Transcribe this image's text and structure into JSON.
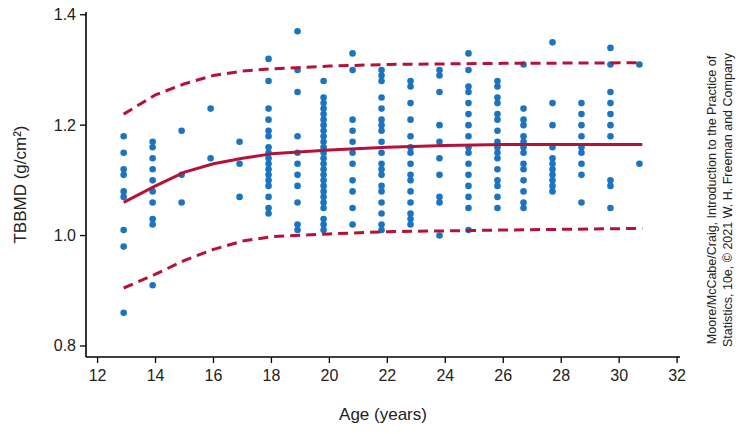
{
  "chart_data": {
    "type": "scatter",
    "x_label": "Age (years)",
    "y_label": "TBBMD (g/cm²)",
    "annotations": [
      "Moore/McCabe/Craig, Introduction to the Practice of",
      "Statistics, 10e, © 2021 W. H. Freeman and Company"
    ],
    "xlim": [
      11.6,
      32.1
    ],
    "ylim": [
      0.78,
      1.405
    ],
    "xticks": [
      12,
      14,
      16,
      18,
      20,
      22,
      24,
      26,
      28,
      30,
      32
    ],
    "yticks": [
      0.8,
      {
        "value": 1,
        "label": "1.0"
      },
      1.2,
      1.4
    ],
    "grid": false,
    "series": [
      {
        "type": "scatter",
        "marker": "circle",
        "color": "#1b74c2",
        "x": [
          12.9,
          12.9,
          12.9,
          12.9,
          12.9,
          12.9,
          12.9,
          12.9,
          12.9,
          13.9,
          13.9,
          13.9,
          13.9,
          13.9,
          13.9,
          13.9,
          13.9,
          13.9,
          13.9,
          14.9,
          14.9,
          14.9,
          15.9,
          15.9,
          16.9,
          16.9,
          16.9,
          17.9,
          17.9,
          17.9,
          17.9,
          17.9,
          17.9,
          17.9,
          17.9,
          17.9,
          17.9,
          17.9,
          17.9,
          17.9,
          17.9,
          17.9,
          17.9,
          17.9,
          18.9,
          18.9,
          18.9,
          18.9,
          18.9,
          18.9,
          18.9,
          18.9,
          18.9,
          18.9,
          18.9,
          19.8,
          19.8,
          19.8,
          19.8,
          19.8,
          19.8,
          19.8,
          19.8,
          19.8,
          19.8,
          19.8,
          19.8,
          19.8,
          19.8,
          19.8,
          19.8,
          19.8,
          19.8,
          19.8,
          19.8,
          19.8,
          19.8,
          19.8,
          19.8,
          19.8,
          20.8,
          20.8,
          20.8,
          20.8,
          20.8,
          20.8,
          20.8,
          20.8,
          20.8,
          20.8,
          20.8,
          21.8,
          21.8,
          21.8,
          21.8,
          21.8,
          21.8,
          21.8,
          21.8,
          21.8,
          21.8,
          21.8,
          21.8,
          21.8,
          21.8,
          21.8,
          21.8,
          21.8,
          21.8,
          21.8,
          22.8,
          22.8,
          22.8,
          22.8,
          22.8,
          22.8,
          22.8,
          22.8,
          22.8,
          22.8,
          22.8,
          22.8,
          22.8,
          22.8,
          22.8,
          23.8,
          23.8,
          23.8,
          23.8,
          23.8,
          23.8,
          23.8,
          23.8,
          23.8,
          23.8,
          24.8,
          24.8,
          24.8,
          24.8,
          24.8,
          24.8,
          24.8,
          24.8,
          24.8,
          24.8,
          24.8,
          24.8,
          24.8,
          24.8,
          24.8,
          24.8,
          25.8,
          25.8,
          25.8,
          25.8,
          25.8,
          25.8,
          25.8,
          25.8,
          25.8,
          25.8,
          25.8,
          25.8,
          25.8,
          25.8,
          25.8,
          25.8,
          26.7,
          26.7,
          26.7,
          26.7,
          26.7,
          26.7,
          26.7,
          26.7,
          26.7,
          26.7,
          26.7,
          26.7,
          26.7,
          26.7,
          27.7,
          27.7,
          27.7,
          27.7,
          27.7,
          27.7,
          27.7,
          27.7,
          27.7,
          27.7,
          27.7,
          28.7,
          28.7,
          28.7,
          28.7,
          28.7,
          28.7,
          28.7,
          28.7,
          28.7,
          29.7,
          29.7,
          29.7,
          29.7,
          29.7,
          29.7,
          29.7,
          29.7,
          29.7,
          29.7,
          30.7,
          30.7
        ],
        "values": [
          1.18,
          1.15,
          1.12,
          1.08,
          1.07,
          1.01,
          0.98,
          0.86,
          1.11,
          1.17,
          1.16,
          1.14,
          1.12,
          1.1,
          1.08,
          1.06,
          1.03,
          1.02,
          0.91,
          1.19,
          1.11,
          1.06,
          1.23,
          1.14,
          1.17,
          1.13,
          1.07,
          1.32,
          1.28,
          1.23,
          1.21,
          1.19,
          1.18,
          1.16,
          1.15,
          1.14,
          1.13,
          1.12,
          1.11,
          1.1,
          1.09,
          1.07,
          1.05,
          1.04,
          1.37,
          1.3,
          1.26,
          1.18,
          1.15,
          1.13,
          1.11,
          1.09,
          1.06,
          1.02,
          1.01,
          1.28,
          1.25,
          1.24,
          1.23,
          1.22,
          1.21,
          1.2,
          1.19,
          1.18,
          1.17,
          1.16,
          1.15,
          1.14,
          1.13,
          1.12,
          1.11,
          1.1,
          1.09,
          1.08,
          1.07,
          1.06,
          1.05,
          1.03,
          1.02,
          1.01,
          1.33,
          1.3,
          1.21,
          1.19,
          1.17,
          1.15,
          1.13,
          1.1,
          1.08,
          1.05,
          1.02,
          1.3,
          1.29,
          1.28,
          1.25,
          1.23,
          1.21,
          1.2,
          1.19,
          1.17,
          1.15,
          1.13,
          1.12,
          1.11,
          1.09,
          1.08,
          1.06,
          1.04,
          1.02,
          1.01,
          1.28,
          1.27,
          1.24,
          1.21,
          1.18,
          1.16,
          1.15,
          1.13,
          1.11,
          1.1,
          1.08,
          1.06,
          1.04,
          1.03,
          1.02,
          1.3,
          1.29,
          1.26,
          1.2,
          1.17,
          1.14,
          1.11,
          1.07,
          1.06,
          1.0,
          1.33,
          1.3,
          1.27,
          1.26,
          1.24,
          1.22,
          1.2,
          1.18,
          1.16,
          1.15,
          1.13,
          1.11,
          1.09,
          1.07,
          1.05,
          1.01,
          1.28,
          1.27,
          1.25,
          1.24,
          1.22,
          1.21,
          1.19,
          1.17,
          1.16,
          1.15,
          1.14,
          1.12,
          1.1,
          1.09,
          1.07,
          1.05,
          1.31,
          1.23,
          1.21,
          1.2,
          1.18,
          1.17,
          1.16,
          1.15,
          1.13,
          1.12,
          1.1,
          1.08,
          1.06,
          1.05,
          1.35,
          1.24,
          1.2,
          1.16,
          1.14,
          1.13,
          1.12,
          1.11,
          1.1,
          1.09,
          1.08,
          1.24,
          1.22,
          1.2,
          1.18,
          1.16,
          1.15,
          1.13,
          1.11,
          1.06,
          1.34,
          1.31,
          1.26,
          1.24,
          1.22,
          1.2,
          1.18,
          1.1,
          1.09,
          1.05,
          1.31,
          1.13
        ]
      },
      {
        "type": "line",
        "line_style": "solid",
        "color": "#b5123a",
        "x": [
          12.9,
          14,
          15,
          16,
          17,
          18,
          20,
          22,
          24,
          26,
          28,
          30.8
        ],
        "values": [
          1.06,
          1.09,
          1.115,
          1.13,
          1.14,
          1.148,
          1.155,
          1.16,
          1.163,
          1.165,
          1.165,
          1.165
        ]
      },
      {
        "type": "line",
        "line_style": "dashed",
        "color": "#b5123a",
        "x": [
          12.9,
          14,
          15,
          16,
          17,
          18,
          20,
          22,
          26,
          30.8
        ],
        "values": [
          1.22,
          1.255,
          1.275,
          1.29,
          1.298,
          1.302,
          1.307,
          1.31,
          1.312,
          1.313
        ]
      },
      {
        "type": "line",
        "line_style": "dashed",
        "color": "#b5123a",
        "x": [
          12.9,
          14,
          15,
          16,
          17,
          18,
          20,
          22,
          26,
          30.8
        ],
        "values": [
          0.905,
          0.93,
          0.955,
          0.975,
          0.99,
          0.998,
          1.003,
          1.007,
          1.01,
          1.013
        ]
      }
    ]
  }
}
